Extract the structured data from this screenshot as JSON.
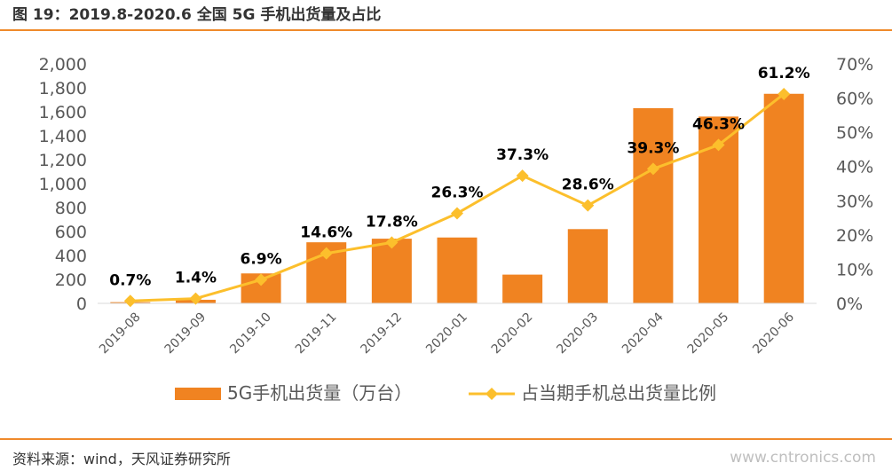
{
  "title": "图 19：2019.8-2020.6 全国 5G 手机出货量及占比",
  "source": "资料来源：wind，天风证券研究所",
  "watermark": "www.cntronics.com",
  "colors": {
    "bar": "#f08321",
    "line": "#fcbf2c",
    "rule": "#ef8a2b",
    "axis": "#d9d9d9",
    "text": "#595959"
  },
  "chart_data": {
    "type": "bar",
    "categories": [
      "2019-08",
      "2019-09",
      "2019-10",
      "2019-11",
      "2019-12",
      "2020-01",
      "2020-02",
      "2020-03",
      "2020-04",
      "2020-05",
      "2020-06"
    ],
    "series": [
      {
        "name": "5G手机出货量（万台）",
        "type": "bar",
        "axis": "left",
        "values": [
          10,
          30,
          250,
          510,
          540,
          550,
          240,
          620,
          1630,
          1560,
          1750
        ]
      },
      {
        "name": "占当期手机总出货量比例",
        "type": "line",
        "axis": "right",
        "values": [
          0.7,
          1.4,
          6.9,
          14.6,
          17.8,
          26.3,
          37.3,
          28.6,
          39.3,
          46.3,
          61.2
        ],
        "labels": [
          "0.7%",
          "1.4%",
          "6.9%",
          "14.6%",
          "17.8%",
          "26.3%",
          "37.3%",
          "28.6%",
          "39.3%",
          "46.3%",
          "61.2%"
        ]
      }
    ],
    "ylim_left": [
      0,
      2000
    ],
    "yticks_left": [
      "0",
      "200",
      "400",
      "600",
      "800",
      "1,000",
      "1,200",
      "1,400",
      "1,600",
      "1,800",
      "2,000"
    ],
    "ylim_right": [
      0,
      70
    ],
    "yticks_right": [
      "0%",
      "10%",
      "20%",
      "30%",
      "40%",
      "50%",
      "60%",
      "70%"
    ],
    "grid": false,
    "legend_position": "bottom"
  }
}
